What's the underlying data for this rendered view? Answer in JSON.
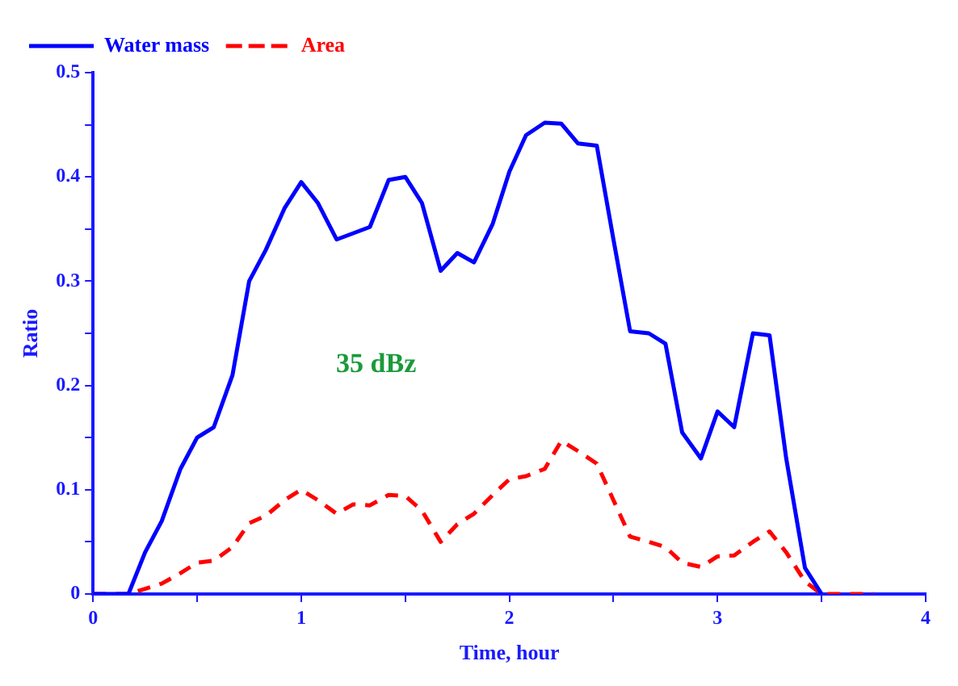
{
  "chart_data": {
    "type": "line",
    "xlabel": "Time, hour",
    "ylabel": "Ratio",
    "annotations": [
      "35 dBz"
    ],
    "xlim": [
      0,
      4
    ],
    "ylim": [
      0,
      0.5
    ],
    "xticks": [
      0,
      {
        "value": 0.5,
        "label": null
      },
      1,
      {
        "value": 1.5,
        "label": null
      },
      2,
      {
        "value": 2.5,
        "label": null
      },
      3,
      {
        "value": 3.5,
        "label": null
      },
      4
    ],
    "yticks": [
      0,
      {
        "value": 0.05,
        "label": null
      },
      0.1,
      {
        "value": 0.15,
        "label": null
      },
      0.2,
      {
        "value": 0.25,
        "label": null
      },
      0.3,
      {
        "value": 0.35,
        "label": null
      },
      0.4,
      {
        "value": 0.45,
        "label": null
      },
      0.5
    ],
    "grid": false,
    "legend": "top left",
    "marker": "none",
    "series": [
      {
        "name": "Water mass",
        "color": "#0000ff",
        "line_style": "solid",
        "x": [
          0,
          0.17,
          0.25,
          0.33,
          0.42,
          0.5,
          0.58,
          0.67,
          0.75,
          0.83,
          0.92,
          1.0,
          1.08,
          1.17,
          1.33,
          1.42,
          1.5,
          1.58,
          1.67,
          1.75,
          1.83,
          1.92,
          2.0,
          2.08,
          2.17,
          2.25,
          2.33,
          2.42,
          2.5,
          2.58,
          2.67,
          2.75,
          2.83,
          2.92,
          3.0,
          3.08,
          3.17,
          3.25,
          3.33,
          3.42,
          3.5
        ],
        "values": [
          0,
          0,
          0.04,
          0.07,
          0.12,
          0.15,
          0.16,
          0.21,
          0.3,
          0.33,
          0.37,
          0.395,
          0.375,
          0.34,
          0.352,
          0.397,
          0.4,
          0.375,
          0.31,
          0.327,
          0.318,
          0.355,
          0.405,
          0.44,
          0.452,
          0.451,
          0.432,
          0.43,
          0.34,
          0.252,
          0.25,
          0.24,
          0.155,
          0.13,
          0.175,
          0.16,
          0.25,
          0.248,
          0.13,
          0.025,
          0
        ]
      },
      {
        "name": "Area",
        "color": "#ff0000",
        "line_style": "dashed",
        "x": [
          0,
          0.17,
          0.25,
          0.33,
          0.42,
          0.5,
          0.58,
          0.67,
          0.75,
          0.83,
          0.92,
          1.0,
          1.08,
          1.17,
          1.25,
          1.33,
          1.42,
          1.5,
          1.58,
          1.67,
          1.75,
          1.83,
          1.92,
          2.0,
          2.08,
          2.17,
          2.25,
          2.33,
          2.42,
          2.5,
          2.58,
          2.67,
          2.75,
          2.83,
          2.92,
          3.0,
          3.08,
          3.17,
          3.25,
          3.33,
          3.42,
          3.5,
          3.75
        ],
        "values": [
          0,
          0,
          0.005,
          0.01,
          0.02,
          0.03,
          0.032,
          0.045,
          0.068,
          0.075,
          0.09,
          0.1,
          0.09,
          0.077,
          0.086,
          0.085,
          0.095,
          0.094,
          0.08,
          0.05,
          0.067,
          0.077,
          0.095,
          0.11,
          0.113,
          0.12,
          0.147,
          0.137,
          0.125,
          0.09,
          0.055,
          0.05,
          0.045,
          0.03,
          0.026,
          0.036,
          0.037,
          0.05,
          0.06,
          0.04,
          0.012,
          0,
          0
        ]
      }
    ]
  }
}
